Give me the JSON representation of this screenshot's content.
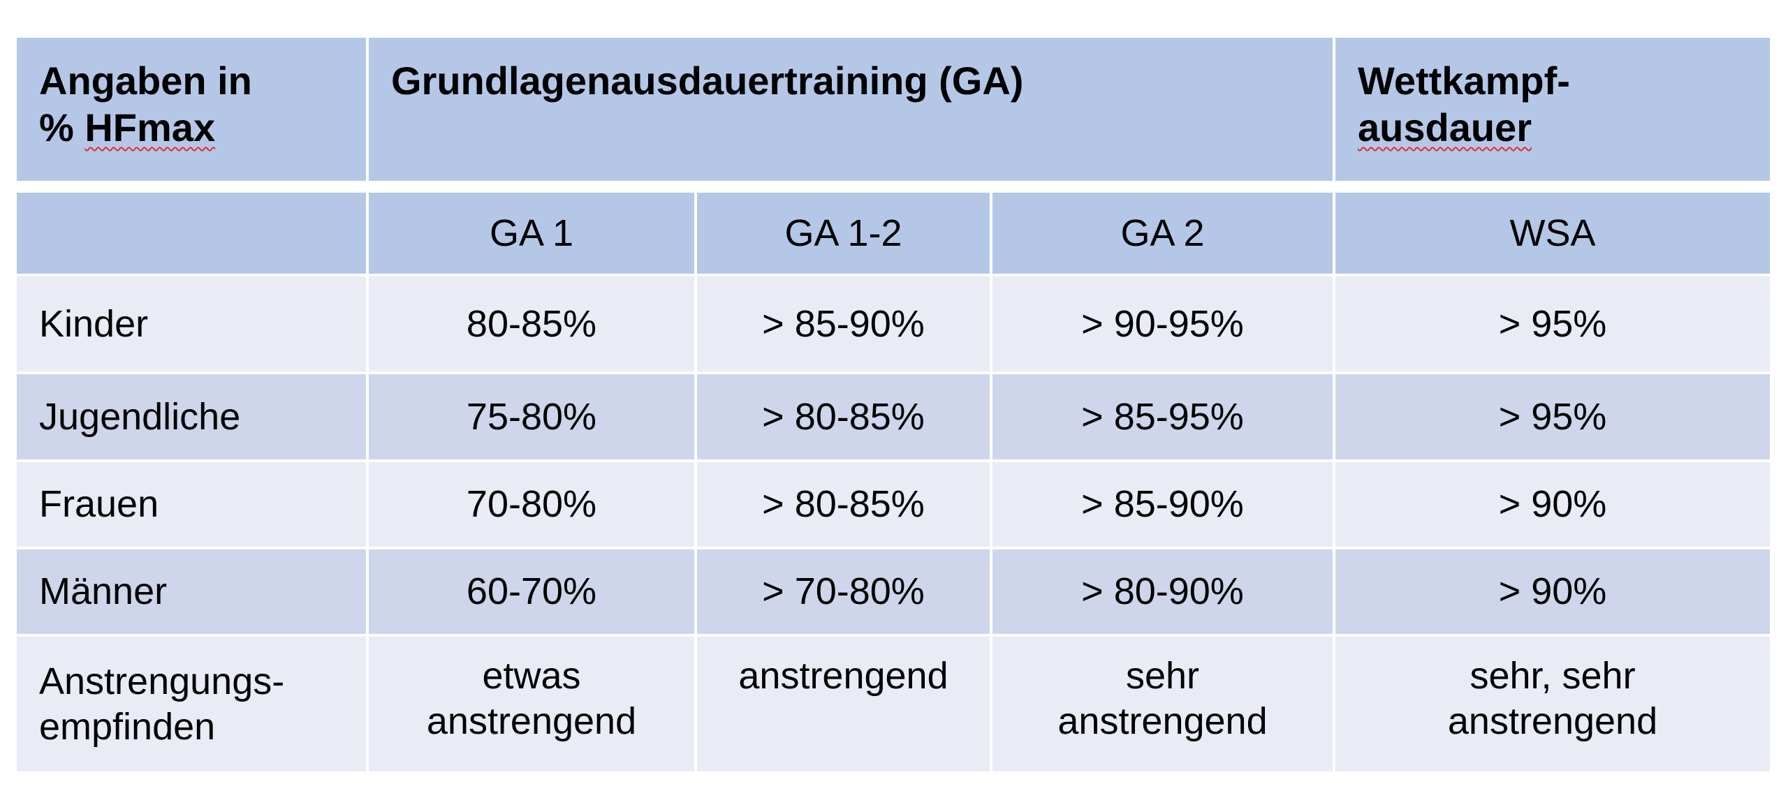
{
  "header": {
    "corner_line1": "Angaben in",
    "corner_line2_prefix": "% ",
    "corner_line2_word": "HFmax",
    "ga_group": "Grundlagenausdauertraining (GA)",
    "wsa_line1": "Wettkampf-",
    "wsa_line2": "ausdauer"
  },
  "subheader": [
    "",
    "GA 1",
    "GA 1-2",
    "GA 2",
    "WSA"
  ],
  "rows": [
    {
      "label": "Kinder",
      "cells": [
        "80-85%",
        "> 85-90%",
        "> 90-95%",
        "> 95%"
      ]
    },
    {
      "label": "Jugendliche",
      "cells": [
        "75-80%",
        "> 80-85%",
        "> 85-95%",
        "> 95%"
      ]
    },
    {
      "label": "Frauen",
      "cells": [
        "70-80%",
        "> 80-85%",
        "> 85-90%",
        "> 90%"
      ]
    },
    {
      "label": "Männer",
      "cells": [
        "60-70%",
        "> 70-80%",
        "> 80-90%",
        "> 90%"
      ]
    }
  ],
  "effort": {
    "label_line1": "Anstrengungs-",
    "label_line2": "empfinden",
    "cells": [
      [
        "etwas",
        "anstrengend"
      ],
      [
        "anstrengend",
        ""
      ],
      [
        "sehr",
        "anstrengend"
      ],
      [
        "sehr, sehr",
        "anstrengend"
      ]
    ]
  },
  "colors": {
    "header": "#b4c7e7",
    "row_light": "#e9ebf5",
    "row_dark": "#cfd5ea",
    "grid": "#ffffff"
  }
}
